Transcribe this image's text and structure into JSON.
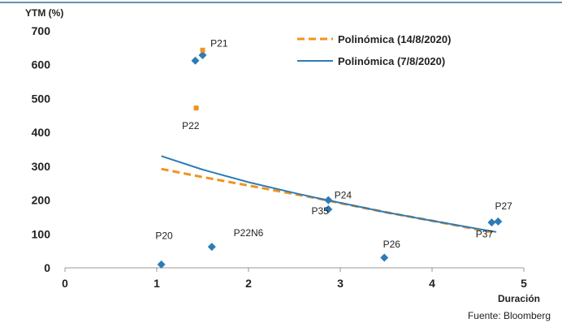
{
  "chart_data": {
    "type": "scatter",
    "title": "",
    "ylabel": "YTM (%)",
    "xlabel": "Duración",
    "xlim": [
      0,
      5
    ],
    "ylim": [
      0,
      700
    ],
    "xticks": [
      0,
      1,
      2,
      3,
      4,
      5
    ],
    "yticks": [
      0,
      100,
      200,
      300,
      400,
      500,
      600,
      700
    ],
    "grid": false,
    "legend_position": "top-right",
    "colors": {
      "blue": "#2e7bb5",
      "orange": "#f0931e",
      "rule": "#2e6f96"
    },
    "series": [
      {
        "name": "Polinómica (14/8/2020)",
        "kind": "trendline",
        "style": "dashed",
        "color": "#f0931e",
        "x": [
          1.05,
          1.5,
          2.0,
          2.5,
          2.85,
          3.0,
          3.5,
          4.0,
          4.5,
          4.7
        ],
        "y": [
          292,
          268,
          243,
          218,
          200,
          191,
          164,
          139,
          113,
          103
        ]
      },
      {
        "name": "Polinómica (7/8/2020)",
        "kind": "trendline",
        "style": "solid",
        "color": "#2e7bb5",
        "x": [
          1.05,
          1.5,
          2.0,
          2.5,
          2.85,
          3.0,
          3.5,
          4.0,
          4.5,
          4.7
        ],
        "y": [
          330,
          290,
          253,
          221,
          200,
          192,
          164,
          139,
          115,
          106
        ]
      },
      {
        "kind": "points",
        "marker": "diamond",
        "color": "#2e7bb5",
        "points": [
          {
            "x": 1.05,
            "y": 10
          },
          {
            "x": 1.42,
            "y": 612
          },
          {
            "x": 1.5,
            "y": 628
          },
          {
            "x": 1.6,
            "y": 62
          },
          {
            "x": 2.87,
            "y": 200
          },
          {
            "x": 2.87,
            "y": 173
          },
          {
            "x": 3.48,
            "y": 30
          },
          {
            "x": 4.65,
            "y": 134
          },
          {
            "x": 4.72,
            "y": 137
          }
        ]
      },
      {
        "kind": "points",
        "marker": "square",
        "color": "#f0931e",
        "points": [
          {
            "x": 1.5,
            "y": 643
          },
          {
            "x": 1.43,
            "y": 472
          }
        ]
      }
    ],
    "annotations": [
      {
        "text": "P20",
        "x": 1.08,
        "y": 85
      },
      {
        "text": "P22N6",
        "x": 2.0,
        "y": 93
      },
      {
        "text": "P21",
        "x": 1.68,
        "y": 653
      },
      {
        "text": "P22",
        "x": 1.37,
        "y": 410
      },
      {
        "text": "P24",
        "x": 3.03,
        "y": 205
      },
      {
        "text": "P35",
        "x": 2.78,
        "y": 158
      },
      {
        "text": "P26",
        "x": 3.56,
        "y": 60
      },
      {
        "text": "P27",
        "x": 4.78,
        "y": 173
      },
      {
        "text": "P37",
        "x": 4.57,
        "y": 90
      }
    ]
  },
  "source": "Fuente: Bloomberg"
}
